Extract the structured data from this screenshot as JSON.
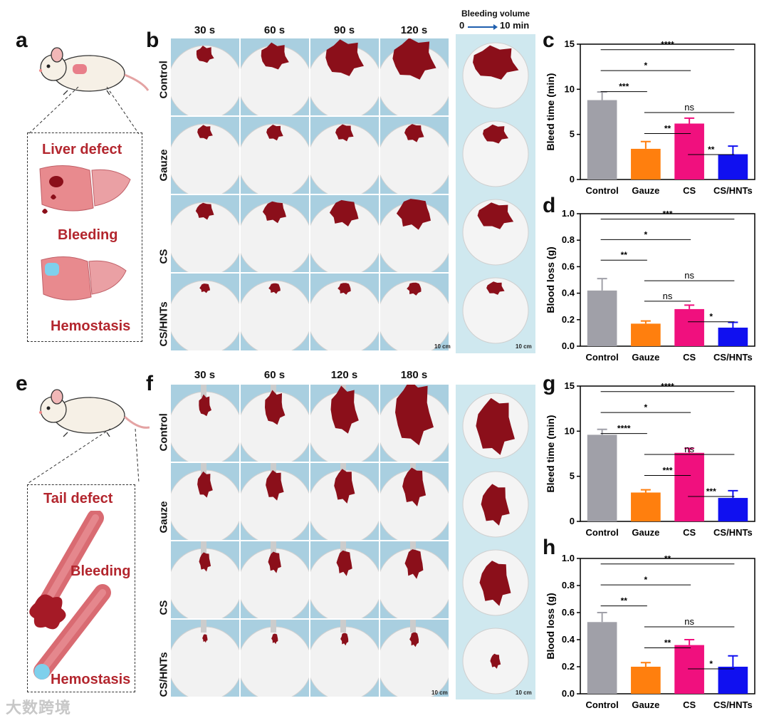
{
  "panels": {
    "a": {
      "letter": "a",
      "labels": [
        "Liver defect",
        "Bleeding",
        "Hemostasis"
      ]
    },
    "b": {
      "letter": "b",
      "times": [
        "30 s",
        "60 s",
        "90 s",
        "120 s"
      ],
      "rows": [
        "Control",
        "Gauze",
        "CS",
        "CS/HNTs"
      ],
      "scale": "10 cm"
    },
    "e": {
      "letter": "e",
      "labels": [
        "Tail defect",
        "Bleeding",
        "Hemostasis"
      ]
    },
    "f": {
      "letter": "f",
      "times": [
        "30 s",
        "60 s",
        "120 s",
        "180 s"
      ],
      "rows": [
        "Control",
        "Gauze",
        "CS",
        "CS/HNTs"
      ],
      "scale": "10 cm"
    },
    "volume": {
      "title": "Bleeding volume",
      "start": "0",
      "end": "10 min",
      "scale": "10 cm"
    }
  },
  "colors": {
    "Control": "#a0a0a8",
    "Gauze": "#ff7f0e",
    "CS": "#f0107e",
    "CS/HNTs": "#1010f0",
    "blood": "#8b0f1a",
    "liver": "#e88a8e"
  },
  "watermark": "大数跨境",
  "chart_data": [
    {
      "id": "c",
      "letter": "c",
      "type": "bar",
      "categories": [
        "Control",
        "Gauze",
        "CS",
        "CS/HNTs"
      ],
      "values": [
        8.8,
        3.4,
        6.2,
        2.8
      ],
      "errors": [
        0.9,
        0.8,
        0.6,
        0.9
      ],
      "ylabel": "Bleed time (min)",
      "ylim": [
        0,
        15
      ],
      "ticks": [
        0,
        5,
        10,
        15
      ],
      "tick_labels": [
        "0",
        "5",
        "10",
        "15"
      ],
      "sig": [
        {
          "a": 0,
          "b": 3,
          "t": "****"
        },
        {
          "a": 0,
          "b": 2,
          "t": "*"
        },
        {
          "a": 0,
          "b": 1,
          "t": "***"
        },
        {
          "a": 1,
          "b": 3,
          "t": "ns"
        },
        {
          "a": 1,
          "b": 2,
          "t": "**"
        },
        {
          "a": 2,
          "b": 3,
          "t": "**"
        }
      ]
    },
    {
      "id": "d",
      "letter": "d",
      "type": "bar",
      "categories": [
        "Control",
        "Gauze",
        "CS",
        "CS/HNTs"
      ],
      "values": [
        0.42,
        0.17,
        0.28,
        0.14
      ],
      "errors": [
        0.09,
        0.02,
        0.03,
        0.04
      ],
      "ylabel": "Blood loss (g)",
      "ylim": [
        0,
        1.0
      ],
      "ticks": [
        0,
        0.2,
        0.4,
        0.6,
        0.8,
        1.0
      ],
      "tick_labels": [
        "0.0",
        "0.2",
        "0.4",
        "0.6",
        "0.8",
        "1.0"
      ],
      "sig": [
        {
          "a": 0,
          "b": 3,
          "t": "***"
        },
        {
          "a": 0,
          "b": 2,
          "t": "*"
        },
        {
          "a": 0,
          "b": 1,
          "t": "**"
        },
        {
          "a": 1,
          "b": 3,
          "t": "ns"
        },
        {
          "a": 1,
          "b": 2,
          "t": "ns"
        },
        {
          "a": 2,
          "b": 3,
          "t": "*"
        }
      ]
    },
    {
      "id": "g",
      "letter": "g",
      "type": "bar",
      "categories": [
        "Control",
        "Gauze",
        "CS",
        "CS/HNTs"
      ],
      "values": [
        9.6,
        3.2,
        7.6,
        2.6
      ],
      "errors": [
        0.6,
        0.3,
        0.5,
        0.8
      ],
      "ylabel": "Bleed time (min)",
      "ylim": [
        0,
        15
      ],
      "ticks": [
        0,
        5,
        10,
        15
      ],
      "tick_labels": [
        "0",
        "5",
        "10",
        "15"
      ],
      "sig": [
        {
          "a": 0,
          "b": 3,
          "t": "****"
        },
        {
          "a": 0,
          "b": 2,
          "t": "*"
        },
        {
          "a": 0,
          "b": 1,
          "t": "****"
        },
        {
          "a": 1,
          "b": 3,
          "t": "ns"
        },
        {
          "a": 1,
          "b": 2,
          "t": "***"
        },
        {
          "a": 2,
          "b": 3,
          "t": "***"
        }
      ]
    },
    {
      "id": "h",
      "letter": "h",
      "type": "bar",
      "categories": [
        "Control",
        "Gauze",
        "CS",
        "CS/HNTs"
      ],
      "values": [
        0.53,
        0.2,
        0.36,
        0.2
      ],
      "errors": [
        0.07,
        0.03,
        0.04,
        0.08
      ],
      "ylabel": "Blood loss (g)",
      "ylim": [
        0,
        1.0
      ],
      "ticks": [
        0,
        0.2,
        0.4,
        0.6,
        0.8,
        1.0
      ],
      "tick_labels": [
        "0.0",
        "0.2",
        "0.4",
        "0.6",
        "0.8",
        "1.0"
      ],
      "sig": [
        {
          "a": 0,
          "b": 3,
          "t": "**"
        },
        {
          "a": 0,
          "b": 2,
          "t": "*"
        },
        {
          "a": 0,
          "b": 1,
          "t": "**"
        },
        {
          "a": 1,
          "b": 3,
          "t": "ns"
        },
        {
          "a": 1,
          "b": 2,
          "t": "**"
        },
        {
          "a": 2,
          "b": 3,
          "t": "*"
        }
      ]
    }
  ]
}
